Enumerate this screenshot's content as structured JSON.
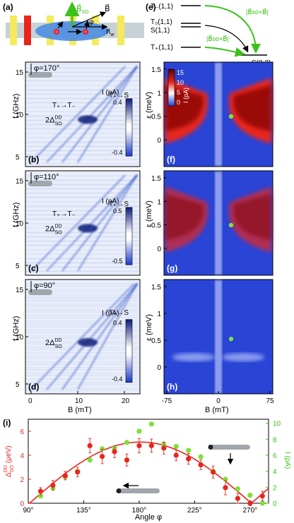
{
  "panels": {
    "a": "(a)",
    "b": "(b)",
    "c": "(c)",
    "d": "(d)",
    "e": "(e)",
    "f": "(f)",
    "g": "(g)",
    "h": "(h)",
    "i": "(i)"
  },
  "schematic": {
    "b_vec": "B⃗",
    "bso_vec": "B⃗",
    "bso_sub": "SO",
    "phi": "φ",
    "nw": "n⃗",
    "nw_sub": "w"
  },
  "energy_levels": {
    "t_minus": "T₋(1,1)",
    "t0": "T₀(1,1)",
    "s11": "S(1,1)",
    "t_plus": "T₊(1,1)",
    "s02": "S(0,2)",
    "coupling_label": "|B⃗so×B⃗|"
  },
  "spectra": {
    "b": {
      "angle": "φ=170°",
      "trans1": "T₊→T₋",
      "trans2": "T₊→S",
      "delta": "2Δ",
      "delta_sup": "DD",
      "delta_sub": "SO",
      "cbar_title": "I (pA)",
      "cbar_top": "0.4",
      "cbar_bottom": "-0.4"
    },
    "c": {
      "angle": "φ=110°",
      "trans1": "T₊→T₋",
      "trans2": "T₊→S",
      "delta": "2Δ",
      "delta_sup": "DD",
      "delta_sub": "SO",
      "cbar_title": "I (pA)",
      "cbar_top": "0.5",
      "cbar_bottom": "-0.5"
    },
    "d": {
      "angle": "φ=90°",
      "trans2": "T₊→S",
      "delta": "2Δ",
      "delta_sup": "DD",
      "delta_sub": "SO",
      "cbar_title": "I (pA)",
      "cbar_top": "0.4",
      "cbar_bottom": "-0.4"
    },
    "ylabel": "f (GHz)",
    "yticks": [
      "5",
      "10",
      "15"
    ],
    "xlabel": "B (mT)",
    "xticks": [
      "0",
      "10",
      "20"
    ]
  },
  "maps": {
    "ylabel": "ε (meV)",
    "yticks": [
      "0",
      "0.5",
      "1",
      "1.5"
    ],
    "xlabel": "B (mT)",
    "xticks": [
      "-75",
      "0",
      "75"
    ],
    "cbar_title": "I (pA)",
    "cbar_ticks": [
      "15",
      "10",
      "5",
      "0"
    ]
  },
  "chart_data": {
    "type": "scatter",
    "xlabel": "Angle φ",
    "ylabel_left": "Δ DD SO (μeV)",
    "ylabel_left_main": "Δ",
    "ylabel_left_sup": "DD",
    "ylabel_left_sub": "SO",
    "ylabel_left_unit": "(μeV)",
    "ylabel_right": "I (pA)",
    "xlim": [
      90,
      285
    ],
    "ylim_left": [
      0,
      7
    ],
    "ylim_right": [
      0,
      10.5
    ],
    "xticks": [
      90,
      135,
      180,
      225,
      270
    ],
    "xtick_labels": [
      "90°",
      "135°",
      "180°",
      "225°",
      "270°"
    ],
    "yticks_left": [
      0,
      2,
      4,
      6
    ],
    "yticks_right": [
      0,
      2,
      4,
      6,
      8,
      10
    ],
    "series": [
      {
        "color": "#e8251d",
        "axis": "left",
        "x": [
          100,
          110,
          120,
          130,
          140,
          150,
          160,
          170,
          180,
          190,
          200,
          210,
          220,
          230,
          240,
          250,
          260,
          270,
          280
        ],
        "y": [
          1.0,
          1.5,
          2.3,
          2.6,
          4.8,
          3.9,
          4.3,
          3.6,
          4.8,
          4.8,
          4.6,
          4.0,
          3.7,
          3.2,
          2.6,
          1.3,
          0.4,
          0.0,
          0.6
        ],
        "err": [
          0.3,
          0.4,
          0.35,
          0.4,
          0.6,
          0.6,
          0.5,
          0.5,
          0.6,
          0.55,
          0.5,
          0.45,
          0.45,
          0.4,
          0.5,
          0.6,
          0.4,
          0.2,
          0.4
        ]
      },
      {
        "color": "#7ee03a",
        "axis": "right",
        "x": [
          100,
          110,
          120,
          130,
          140,
          150,
          160,
          170,
          180,
          190,
          200,
          210,
          220,
          230,
          240,
          250,
          260,
          270,
          280
        ],
        "y": [
          0.9,
          1.9,
          3.3,
          4.0,
          5.4,
          6.8,
          6.9,
          7.6,
          9.0,
          9.9,
          7.4,
          7.1,
          6.6,
          5.8,
          4.0,
          3.0,
          1.8,
          1.0,
          0.0
        ]
      }
    ],
    "fit": {
      "color": "#e8251d",
      "axis": "left",
      "model": "A*|sin(phi-phi0)|",
      "A": 5.1,
      "phi0": 91
    }
  }
}
